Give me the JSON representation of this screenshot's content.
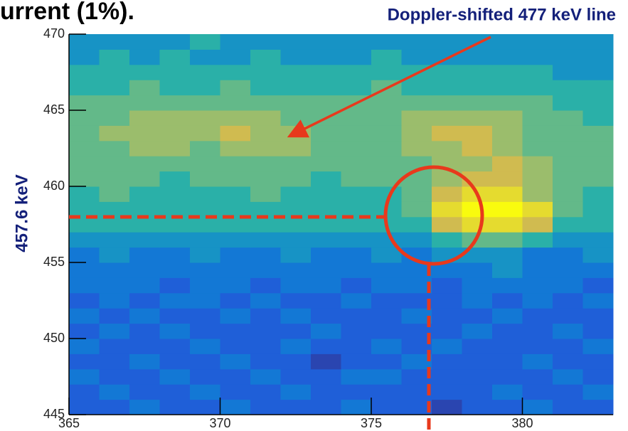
{
  "chart_data": {
    "type": "heatmap",
    "title": "urrent (1%).",
    "annotation": "Doppler-shifted 477 keV line",
    "y_label": "457.6 keV",
    "colormap": "parula",
    "zlim": [
      0,
      10
    ],
    "xlim": [
      365,
      383
    ],
    "ylim": [
      445,
      470
    ],
    "xticks": [
      365,
      370,
      375,
      380
    ],
    "yticks": [
      445,
      450,
      455,
      460,
      465,
      470
    ],
    "xbins": [
      365,
      366,
      367,
      368,
      369,
      370,
      371,
      372,
      373,
      374,
      375,
      376,
      377,
      378,
      379,
      380,
      381,
      382,
      383
    ],
    "ybins": [
      445,
      446,
      447,
      448,
      449,
      450,
      451,
      452,
      453,
      454,
      455,
      456,
      457,
      458,
      459,
      460,
      461,
      462,
      463,
      464,
      465,
      466,
      467,
      468,
      469,
      470
    ],
    "z": [
      [
        2,
        2,
        3,
        2,
        2,
        3,
        2,
        2,
        2,
        3,
        2,
        2,
        1,
        2,
        2,
        3,
        2,
        2
      ],
      [
        2,
        3,
        2,
        2,
        3,
        2,
        2,
        3,
        2,
        2,
        2,
        2,
        2,
        2,
        3,
        2,
        2,
        3
      ],
      [
        3,
        2,
        2,
        3,
        2,
        2,
        3,
        2,
        2,
        3,
        3,
        2,
        2,
        2,
        2,
        2,
        3,
        2
      ],
      [
        2,
        2,
        3,
        2,
        2,
        3,
        2,
        2,
        1,
        2,
        2,
        3,
        2,
        2,
        2,
        3,
        2,
        2
      ],
      [
        3,
        2,
        2,
        2,
        3,
        2,
        2,
        3,
        2,
        2,
        3,
        2,
        3,
        2,
        2,
        2,
        2,
        3
      ],
      [
        2,
        3,
        2,
        3,
        2,
        2,
        2,
        2,
        3,
        2,
        2,
        2,
        2,
        3,
        2,
        2,
        3,
        2
      ],
      [
        3,
        2,
        3,
        2,
        2,
        3,
        2,
        3,
        2,
        2,
        2,
        3,
        2,
        2,
        3,
        2,
        2,
        2
      ],
      [
        2,
        3,
        2,
        3,
        3,
        2,
        3,
        2,
        2,
        3,
        2,
        2,
        2,
        3,
        2,
        3,
        2,
        3
      ],
      [
        3,
        3,
        3,
        2,
        3,
        3,
        2,
        3,
        3,
        2,
        3,
        3,
        2,
        3,
        3,
        3,
        3,
        2
      ],
      [
        3,
        3,
        3,
        3,
        3,
        3,
        3,
        3,
        3,
        3,
        3,
        3,
        3,
        3,
        4,
        3,
        3,
        3
      ],
      [
        3,
        4,
        3,
        3,
        4,
        3,
        3,
        4,
        3,
        3,
        4,
        3,
        4,
        4,
        4,
        3,
        3,
        4
      ],
      [
        4,
        4,
        4,
        4,
        4,
        4,
        4,
        4,
        4,
        4,
        4,
        4,
        5,
        6,
        6,
        5,
        4,
        4
      ],
      [
        5,
        5,
        5,
        5,
        5,
        5,
        5,
        5,
        5,
        5,
        5,
        5,
        8,
        9,
        9,
        8,
        5,
        5
      ],
      [
        5,
        5,
        5,
        5,
        5,
        5,
        5,
        5,
        5,
        5,
        5,
        6,
        9,
        10,
        10,
        9,
        6,
        5
      ],
      [
        5,
        6,
        5,
        5,
        5,
        5,
        6,
        5,
        5,
        5,
        5,
        6,
        8,
        9,
        9,
        7,
        6,
        5
      ],
      [
        6,
        6,
        6,
        5,
        6,
        6,
        6,
        6,
        5,
        6,
        6,
        6,
        7,
        8,
        8,
        7,
        6,
        6
      ],
      [
        6,
        6,
        6,
        6,
        6,
        6,
        6,
        6,
        6,
        6,
        6,
        6,
        7,
        7,
        8,
        7,
        6,
        6
      ],
      [
        6,
        6,
        7,
        7,
        6,
        7,
        7,
        7,
        6,
        6,
        6,
        7,
        7,
        8,
        7,
        6,
        6,
        6
      ],
      [
        6,
        7,
        7,
        7,
        7,
        8,
        7,
        7,
        6,
        6,
        6,
        7,
        8,
        8,
        7,
        6,
        6,
        6
      ],
      [
        6,
        6,
        7,
        7,
        7,
        7,
        7,
        6,
        6,
        6,
        6,
        7,
        7,
        7,
        7,
        6,
        6,
        5
      ],
      [
        6,
        6,
        6,
        6,
        6,
        6,
        6,
        6,
        6,
        6,
        6,
        6,
        6,
        6,
        6,
        6,
        5,
        5
      ],
      [
        5,
        5,
        6,
        5,
        5,
        6,
        5,
        5,
        5,
        5,
        6,
        5,
        5,
        5,
        5,
        5,
        5,
        5
      ],
      [
        5,
        5,
        5,
        5,
        5,
        5,
        5,
        5,
        5,
        5,
        5,
        5,
        5,
        5,
        5,
        5,
        4,
        4
      ],
      [
        4,
        5,
        4,
        5,
        4,
        4,
        5,
        4,
        4,
        4,
        5,
        4,
        4,
        4,
        4,
        4,
        4,
        4
      ],
      [
        4,
        4,
        4,
        4,
        5,
        4,
        4,
        4,
        4,
        4,
        4,
        4,
        4,
        4,
        4,
        4,
        4,
        4
      ]
    ]
  }
}
